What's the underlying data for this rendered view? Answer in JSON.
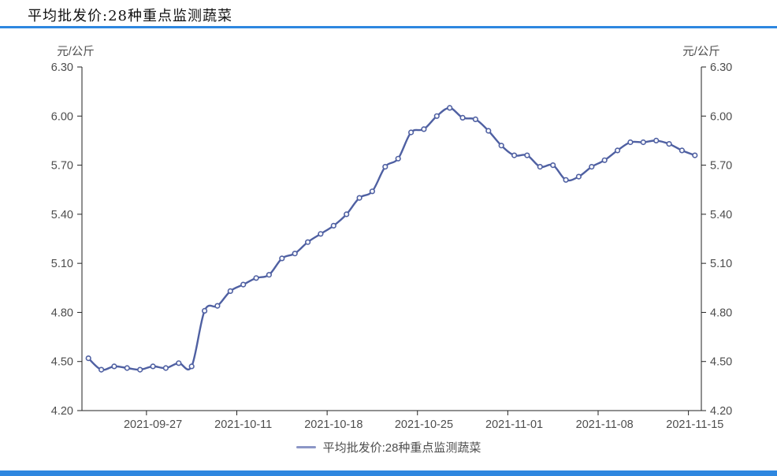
{
  "header": {
    "title": "平均批发价:28种重点监测蔬菜"
  },
  "legend": {
    "label": "平均批发价:28种重点监测蔬菜"
  },
  "colors": {
    "accent_rule": "#2e87e0",
    "line": "#4f60a2",
    "marker_fill": "#ffffff",
    "legend_marker": "#8c96c6",
    "axis": "#222222",
    "tick_text": "#4d4d4d"
  },
  "chart_data": {
    "type": "line",
    "title": "平均批发价:28种重点监测蔬菜",
    "ylabel_left": "元/公斤",
    "ylabel_right": "元/公斤",
    "ylim": [
      4.2,
      6.3
    ],
    "y_ticks": [
      4.2,
      4.5,
      4.8,
      5.1,
      5.4,
      5.7,
      6.0,
      6.3
    ],
    "x_tick_labels": [
      "2021-09-27",
      "2021-10-11",
      "2021-10-18",
      "2021-10-25",
      "2021-11-01",
      "2021-11-08",
      "2021-11-15"
    ],
    "x_tick_indices": [
      5,
      12,
      19,
      26,
      33,
      40,
      47
    ],
    "grid": false,
    "legend_position": "bottom",
    "series": [
      {
        "name": "平均批发价:28种重点监测蔬菜",
        "values": [
          4.52,
          4.45,
          4.47,
          4.46,
          4.45,
          4.47,
          4.46,
          4.49,
          4.47,
          4.81,
          4.84,
          4.93,
          4.97,
          5.01,
          5.03,
          5.13,
          5.16,
          5.23,
          5.28,
          5.33,
          5.4,
          5.5,
          5.54,
          5.69,
          5.74,
          5.9,
          5.92,
          6.0,
          6.05,
          5.99,
          5.98,
          5.91,
          5.82,
          5.76,
          5.76,
          5.69,
          5.7,
          5.61,
          5.63,
          5.69,
          5.73,
          5.79,
          5.84,
          5.84,
          5.85,
          5.83,
          5.79,
          5.76
        ]
      }
    ]
  }
}
